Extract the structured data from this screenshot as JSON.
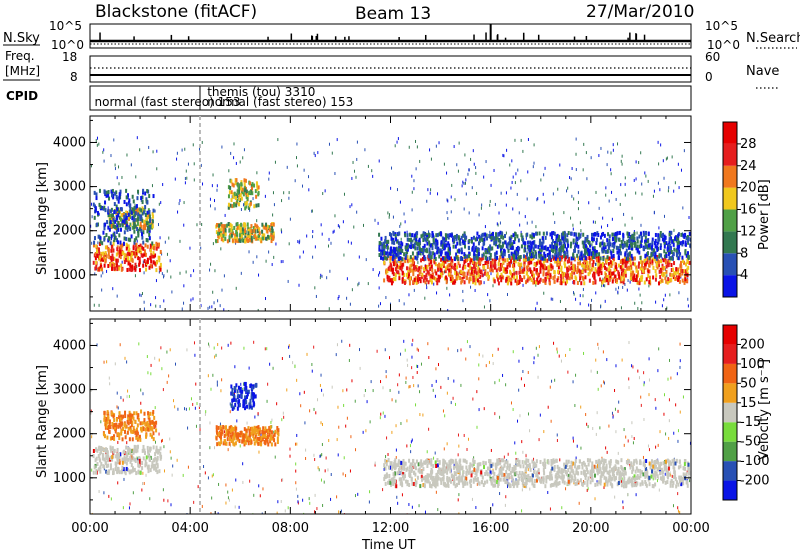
{
  "header": {
    "station": "Blackstone (fitACF)",
    "beam": "Beam 13",
    "date": "27/Mar/2010"
  },
  "top_panels": {
    "nsky_label": "N.Sky",
    "nsky_ticks": [
      "10^5",
      "10^0"
    ],
    "nsearch_label": "N.Search",
    "nsearch_ticks": [
      "10^5",
      "10^0"
    ],
    "freq_label": "Freq.",
    "freq_unit": "[MHz]",
    "freq_ticks": [
      "18",
      "8"
    ],
    "nave_label": "Nave",
    "nave_ticks": [
      "60",
      "0"
    ],
    "cpid_label": "CPID",
    "cpid_entries": [
      {
        "text": "normal (fast stereo) 153",
        "hour": 0.1,
        "row": 1
      },
      {
        "text": "themis (tou) 3310",
        "hour": 4.6,
        "row": 0
      },
      {
        "text": "normal (fast stereo) 153",
        "hour": 4.6,
        "row": 1
      }
    ]
  },
  "chart_data": [
    {
      "type": "heatmap",
      "panel": "power",
      "ylabel": "Slant Range [km]",
      "xlabel": "Time UT",
      "xlim": [
        0,
        24
      ],
      "ylim": [
        180,
        4600
      ],
      "y_ticks": [
        1000,
        2000,
        3000,
        4000
      ],
      "x_ticks": [
        "00:00",
        "04:00",
        "08:00",
        "12:00",
        "16:00",
        "20:00",
        "00:00"
      ],
      "colorbar": {
        "label": "Power [dB]",
        "ticks": [
          "28",
          "24",
          "20",
          "16",
          "12",
          "8",
          "4"
        ],
        "colors": [
          "#0a14e6",
          "#2850b4",
          "#327850",
          "#50a046",
          "#f0c81e",
          "#f0781e",
          "#e61e1e",
          "#e60000"
        ]
      },
      "regions": [
        {
          "t0": 0.1,
          "t1": 2.8,
          "r0": 1150,
          "r1": 1750,
          "level": "high"
        },
        {
          "t0": 0.7,
          "t1": 2.5,
          "r0": 2100,
          "r1": 2550,
          "level": "mid"
        },
        {
          "t0": 0.1,
          "t1": 2.5,
          "r0": 1750,
          "r1": 2950,
          "level": "low"
        },
        {
          "t0": 5.0,
          "t1": 7.3,
          "r0": 1800,
          "r1": 2200,
          "level": "mid"
        },
        {
          "t0": 5.5,
          "t1": 6.7,
          "r0": 2550,
          "r1": 3200,
          "level": "mid"
        },
        {
          "t0": 11.7,
          "t1": 23.9,
          "r0": 850,
          "r1": 1450,
          "level": "high"
        },
        {
          "t0": 11.5,
          "t1": 24.0,
          "r0": 1400,
          "r1": 2000,
          "level": "low"
        }
      ]
    },
    {
      "type": "heatmap",
      "panel": "velocity",
      "ylabel": "Slant Range [km]",
      "xlabel": "Time UT",
      "xlim": [
        0,
        24
      ],
      "ylim": [
        180,
        4600
      ],
      "y_ticks": [
        1000,
        2000,
        3000,
        4000
      ],
      "x_ticks": [
        "00:00",
        "04:00",
        "08:00",
        "12:00",
        "16:00",
        "20:00",
        "00:00"
      ],
      "colorbar": {
        "label": "Velocity [m s⁻¹]",
        "ticks": [
          "200",
          "100",
          "50",
          "15",
          "-15",
          "-50",
          "-100",
          "-200"
        ],
        "colors": [
          "#0a14e6",
          "#2850b4",
          "#50a046",
          "#78dc3c",
          "#c8c8be",
          "#f0a01e",
          "#f06414",
          "#e61e1e",
          "#e60000"
        ]
      },
      "regions": [
        {
          "t0": 0.1,
          "t1": 2.8,
          "r0": 1150,
          "r1": 1750,
          "level": "ground"
        },
        {
          "t0": 0.5,
          "t1": 2.6,
          "r0": 1900,
          "r1": 2550,
          "level": "away"
        },
        {
          "t0": 5.6,
          "t1": 6.6,
          "r0": 2600,
          "r1": 3200,
          "level": "toward"
        },
        {
          "t0": 5.0,
          "t1": 7.5,
          "r0": 1800,
          "r1": 2200,
          "level": "away"
        },
        {
          "t0": 11.7,
          "t1": 23.9,
          "r0": 850,
          "r1": 1450,
          "level": "ground"
        }
      ]
    }
  ]
}
